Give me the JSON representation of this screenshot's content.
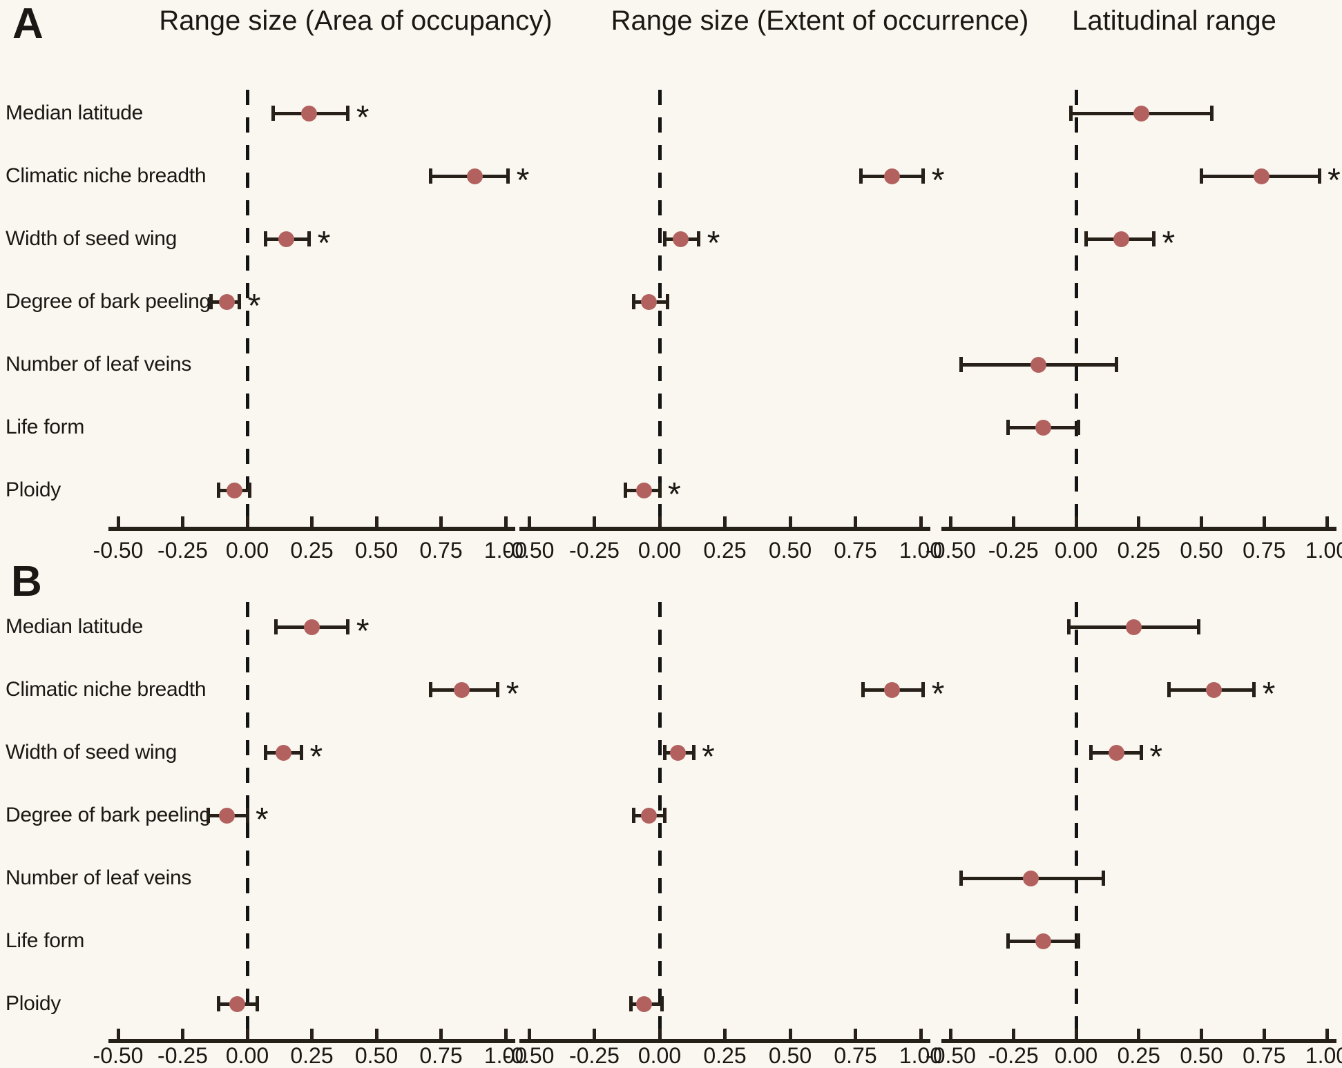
{
  "figure": {
    "panel_a_label": "A",
    "panel_b_label": "B",
    "column_titles": [
      "Range size (Area of occupancy)",
      "Range size (Extent of occurrence)",
      "Latitudinal range"
    ],
    "predictors": [
      "Median latitude",
      "Climatic niche breadth",
      "Width of seed wing",
      "Degree of bark peeling",
      "Number of leaf veins",
      "Life form",
      "Ploidy"
    ],
    "axis": {
      "tick_values": [
        -0.5,
        -0.25,
        0,
        0.25,
        0.5,
        0.75,
        1.0
      ],
      "tick_labels": [
        "-0.50",
        "-0.25",
        "0.00",
        "0.25",
        "0.50",
        "0.75",
        "1.00"
      ]
    },
    "significance_symbol": "*",
    "colors": {
      "background": "#FAF7F0",
      "point": "#B2615E",
      "line": "#262019",
      "dashed_zero_line": "#141414",
      "text": "#1A1714"
    }
  },
  "chart_data": [
    {
      "type": "scatter",
      "panel": "A",
      "column": "Range size (Area of occupancy)",
      "xlim": [
        -0.5,
        1.0
      ],
      "zero_line": 0,
      "points": [
        {
          "predictor": "Median latitude",
          "estimate": 0.24,
          "ci_low": 0.1,
          "ci_high": 0.39,
          "significant": true
        },
        {
          "predictor": "Climatic niche breadth",
          "estimate": 0.88,
          "ci_low": 0.71,
          "ci_high": 1.01,
          "significant": true
        },
        {
          "predictor": "Width of seed wing",
          "estimate": 0.15,
          "ci_low": 0.07,
          "ci_high": 0.24,
          "significant": true
        },
        {
          "predictor": "Degree of bark peeling",
          "estimate": -0.08,
          "ci_low": -0.14,
          "ci_high": -0.03,
          "significant": true
        },
        {
          "predictor": "Ploidy",
          "estimate": -0.05,
          "ci_low": -0.11,
          "ci_high": 0.01,
          "significant": false
        }
      ]
    },
    {
      "type": "scatter",
      "panel": "A",
      "column": "Range size (Extent of occurrence)",
      "xlim": [
        -0.5,
        1.0
      ],
      "zero_line": 0,
      "points": [
        {
          "predictor": "Climatic niche breadth",
          "estimate": 0.89,
          "ci_low": 0.77,
          "ci_high": 1.01,
          "significant": true
        },
        {
          "predictor": "Width of seed wing",
          "estimate": 0.08,
          "ci_low": 0.02,
          "ci_high": 0.15,
          "significant": true
        },
        {
          "predictor": "Degree of bark peeling",
          "estimate": -0.04,
          "ci_low": -0.1,
          "ci_high": 0.03,
          "significant": false
        },
        {
          "predictor": "Ploidy",
          "estimate": -0.06,
          "ci_low": -0.13,
          "ci_high": 0.0,
          "significant": true
        }
      ]
    },
    {
      "type": "scatter",
      "panel": "A",
      "column": "Latitudinal range",
      "xlim": [
        -0.5,
        1.0
      ],
      "zero_line": 0,
      "points": [
        {
          "predictor": "Median latitude",
          "estimate": 0.26,
          "ci_low": -0.02,
          "ci_high": 0.54,
          "significant": false
        },
        {
          "predictor": "Climatic niche breadth",
          "estimate": 0.74,
          "ci_low": 0.5,
          "ci_high": 0.97,
          "significant": true
        },
        {
          "predictor": "Width of seed wing",
          "estimate": 0.18,
          "ci_low": 0.04,
          "ci_high": 0.31,
          "significant": true
        },
        {
          "predictor": "Number of leaf veins",
          "estimate": -0.15,
          "ci_low": -0.46,
          "ci_high": 0.16,
          "significant": false
        },
        {
          "predictor": "Life form",
          "estimate": -0.13,
          "ci_low": -0.27,
          "ci_high": 0.01,
          "significant": false
        }
      ]
    },
    {
      "type": "scatter",
      "panel": "B",
      "column": "Range size (Area of occupancy)",
      "xlim": [
        -0.5,
        1.0
      ],
      "zero_line": 0,
      "points": [
        {
          "predictor": "Median latitude",
          "estimate": 0.25,
          "ci_low": 0.11,
          "ci_high": 0.39,
          "significant": true
        },
        {
          "predictor": "Climatic niche breadth",
          "estimate": 0.83,
          "ci_low": 0.71,
          "ci_high": 0.97,
          "significant": true
        },
        {
          "predictor": "Width of seed wing",
          "estimate": 0.14,
          "ci_low": 0.07,
          "ci_high": 0.21,
          "significant": true
        },
        {
          "predictor": "Degree of bark peeling",
          "estimate": -0.08,
          "ci_low": -0.15,
          "ci_high": 0.0,
          "significant": true
        },
        {
          "predictor": "Ploidy",
          "estimate": -0.04,
          "ci_low": -0.11,
          "ci_high": 0.04,
          "significant": false
        }
      ]
    },
    {
      "type": "scatter",
      "panel": "B",
      "column": "Range size (Extent of occurrence)",
      "xlim": [
        -0.5,
        1.0
      ],
      "zero_line": 0,
      "points": [
        {
          "predictor": "Climatic niche breadth",
          "estimate": 0.89,
          "ci_low": 0.78,
          "ci_high": 1.01,
          "significant": true
        },
        {
          "predictor": "Width of seed wing",
          "estimate": 0.07,
          "ci_low": 0.02,
          "ci_high": 0.13,
          "significant": true
        },
        {
          "predictor": "Degree of bark peeling",
          "estimate": -0.04,
          "ci_low": -0.1,
          "ci_high": 0.02,
          "significant": false
        },
        {
          "predictor": "Ploidy",
          "estimate": -0.06,
          "ci_low": -0.11,
          "ci_high": 0.01,
          "significant": false
        }
      ]
    },
    {
      "type": "scatter",
      "panel": "B",
      "column": "Latitudinal range",
      "xlim": [
        -0.5,
        1.0
      ],
      "zero_line": 0,
      "points": [
        {
          "predictor": "Median latitude",
          "estimate": 0.23,
          "ci_low": -0.03,
          "ci_high": 0.49,
          "significant": false
        },
        {
          "predictor": "Climatic niche breadth",
          "estimate": 0.55,
          "ci_low": 0.37,
          "ci_high": 0.71,
          "significant": true
        },
        {
          "predictor": "Width of seed wing",
          "estimate": 0.16,
          "ci_low": 0.06,
          "ci_high": 0.26,
          "significant": true
        },
        {
          "predictor": "Number of leaf veins",
          "estimate": -0.18,
          "ci_low": -0.46,
          "ci_high": 0.11,
          "significant": false
        },
        {
          "predictor": "Life form",
          "estimate": -0.13,
          "ci_low": -0.27,
          "ci_high": 0.01,
          "significant": false
        }
      ]
    }
  ]
}
